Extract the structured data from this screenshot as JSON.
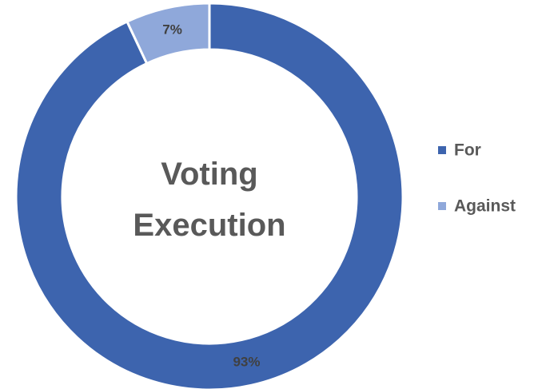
{
  "chart_data": {
    "type": "pie",
    "title": "Voting Execution",
    "categories": [
      "For",
      "Against"
    ],
    "values": [
      93,
      7
    ],
    "value_labels": [
      "93%",
      "7%"
    ],
    "colors": [
      "#3d64ae",
      "#8fa8da"
    ],
    "donut": true,
    "legend": "right"
  }
}
